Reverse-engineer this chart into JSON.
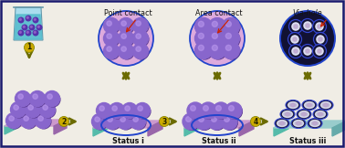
{
  "background_color": "#f0ede5",
  "border_color": "#1a1a6e",
  "step_labels": [
    "1",
    "2",
    "3",
    "4"
  ],
  "status_labels": [
    "Status i",
    "Status ii",
    "Status iii"
  ],
  "contact_labels": [
    "Point contact",
    "Area contact",
    "Via-hole"
  ],
  "arrow_color": "#6b6b00",
  "arrow_number_bg": "#ccaa00",
  "arrow_number_border": "#888800",
  "sphere_color": "#8866cc",
  "sphere_highlight": "#bb99ee",
  "sphere_shadow": "#553388",
  "beaker_body": "#aaddee",
  "beaker_liquid": "#55bbcc",
  "beaker_line": "#3399aa",
  "platform_top": "#cc99cc",
  "platform_right": "#9966aa",
  "platform_teal": "#55bbaa",
  "platform_teal_side": "#44aa99",
  "circle_fill": "#ddaadd",
  "circle_edge": "#2244cc",
  "red_arrow": "#cc2200",
  "text_color": "#111111",
  "via_dark": "#111133",
  "via_ring": "#3344cc",
  "via_white": "#eeeeff",
  "via_purple": "#bb99cc",
  "status_iii_top": "#99cccc",
  "status_iii_right": "#66aaaa",
  "status_iii_teal": "#55bbaa"
}
